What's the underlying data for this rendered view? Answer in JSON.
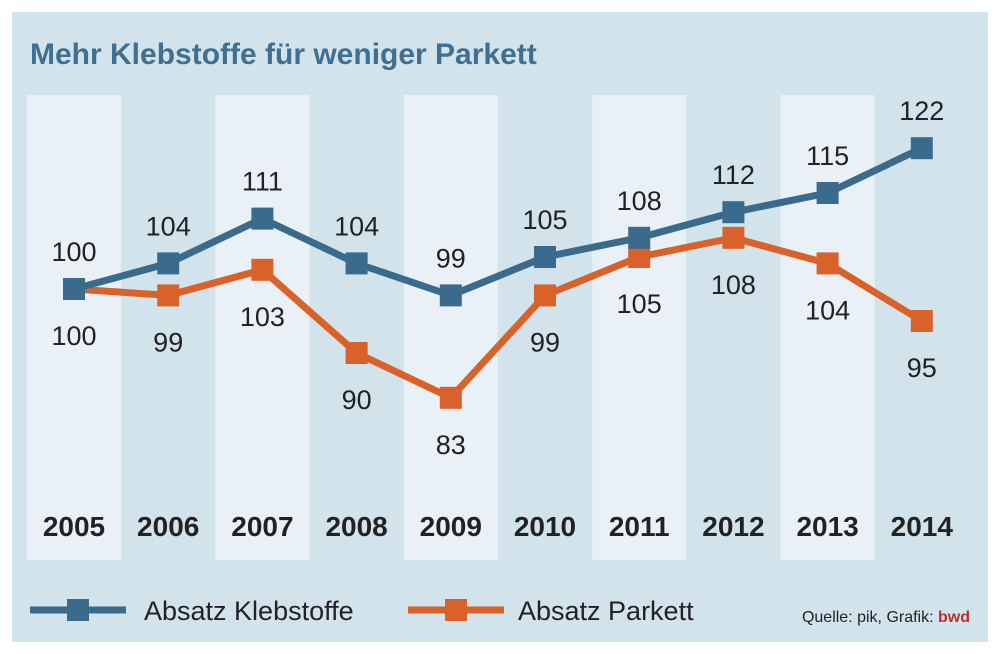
{
  "chart_data": {
    "type": "line",
    "title": "Mehr Klebstoffe für weniger Parkett",
    "categories": [
      "2005",
      "2006",
      "2007",
      "2008",
      "2009",
      "2010",
      "2011",
      "2012",
      "2013",
      "2014"
    ],
    "series": [
      {
        "name": "Absatz Klebstoffe",
        "color": "#3a6a8c",
        "values": [
          100,
          104,
          111,
          104,
          99,
          105,
          108,
          112,
          115,
          122
        ]
      },
      {
        "name": "Absatz Parkett",
        "color": "#d9622b",
        "values": [
          100,
          99,
          103,
          90,
          83,
          99,
          105,
          108,
          104,
          95
        ]
      }
    ],
    "ylim": [
      75,
      130
    ],
    "xlabel": "",
    "ylabel": "",
    "source_prefix": "Quelle: pik, Grafik: ",
    "source_brand": "bwd",
    "band_color": "#e9f1f6",
    "frame_color": "#d3e3ec"
  }
}
